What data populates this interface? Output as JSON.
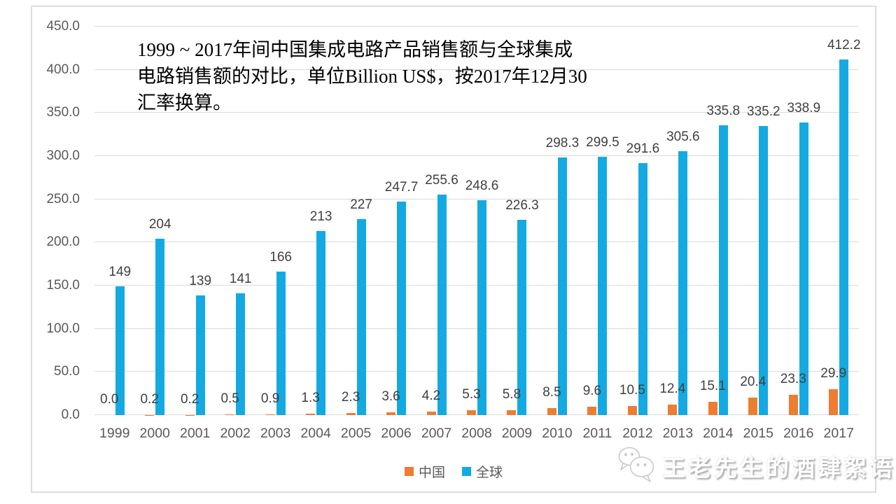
{
  "title": {
    "lines": [
      "1999 ~ 2017年间中国集成电路产品销售额与全球集成",
      "电路销售额的对比，单位Billion US$，按2017年12月30",
      "汇率换算。"
    ]
  },
  "chart_data": {
    "type": "bar",
    "title": "1999 ~ 2017年间中国集成电路产品销售额与全球集成电路销售额的对比，单位Billion US$，按2017年12月30汇率换算。",
    "unit": "Billion US$",
    "categories": [
      "1999",
      "2000",
      "2001",
      "2002",
      "2003",
      "2004",
      "2005",
      "2006",
      "2007",
      "2008",
      "2009",
      "2010",
      "2011",
      "2012",
      "2013",
      "2014",
      "2015",
      "2016",
      "2017"
    ],
    "series": [
      {
        "name": "中国",
        "color": "#ED7D31",
        "values": [
          0.0,
          0.2,
          0.2,
          0.5,
          0.9,
          1.3,
          2.3,
          3.6,
          4.2,
          5.3,
          5.8,
          8.5,
          9.6,
          10.5,
          12.4,
          15.1,
          20.4,
          23.3,
          29.9
        ],
        "labels": [
          "0.0",
          "0.2",
          "0.2",
          "0.5",
          "0.9",
          "1.3",
          "2.3",
          "3.6",
          "4.2",
          "5.3",
          "5.8",
          "8.5",
          "9.6",
          "10.5",
          "12.4",
          "15.1",
          "20.4",
          "23.3",
          "29.9"
        ]
      },
      {
        "name": "全球",
        "color": "#14AAE1",
        "values": [
          149,
          204,
          139,
          141,
          166,
          213,
          227,
          247.7,
          255.6,
          248.6,
          226.3,
          298.3,
          299.5,
          291.6,
          305.6,
          335.8,
          335.2,
          338.9,
          412.2
        ],
        "labels": [
          "149",
          "204",
          "139",
          "141",
          "166",
          "213",
          "227",
          "247.7",
          "255.6",
          "248.6",
          "226.3",
          "298.3",
          "299.5",
          "291.6",
          "305.6",
          "335.8",
          "335.2",
          "338.9",
          "412.2"
        ]
      }
    ],
    "ylim": [
      0,
      450
    ],
    "ytick_step": 50,
    "yticks": [
      "0.0",
      "50.0",
      "100.0",
      "150.0",
      "200.0",
      "250.0",
      "300.0",
      "350.0",
      "400.0",
      "450.0"
    ],
    "grid": true,
    "legend_position": "bottom"
  },
  "legend": {
    "items": [
      {
        "label": "中国",
        "color": "#ED7D31"
      },
      {
        "label": "全球",
        "color": "#14AAE1"
      }
    ]
  },
  "watermark": {
    "text": "王老先生的酒肆絮语",
    "icon": "wechat-icon"
  },
  "colors": {
    "china_bar": "#ED7D31",
    "global_bar": "#14AAE1",
    "gridline": "#D9D9D9",
    "axis_text": "#595959",
    "data_label_text": "#404040",
    "frame_border": "#DCDCDC",
    "watermark_text": "#FFFFFF"
  }
}
